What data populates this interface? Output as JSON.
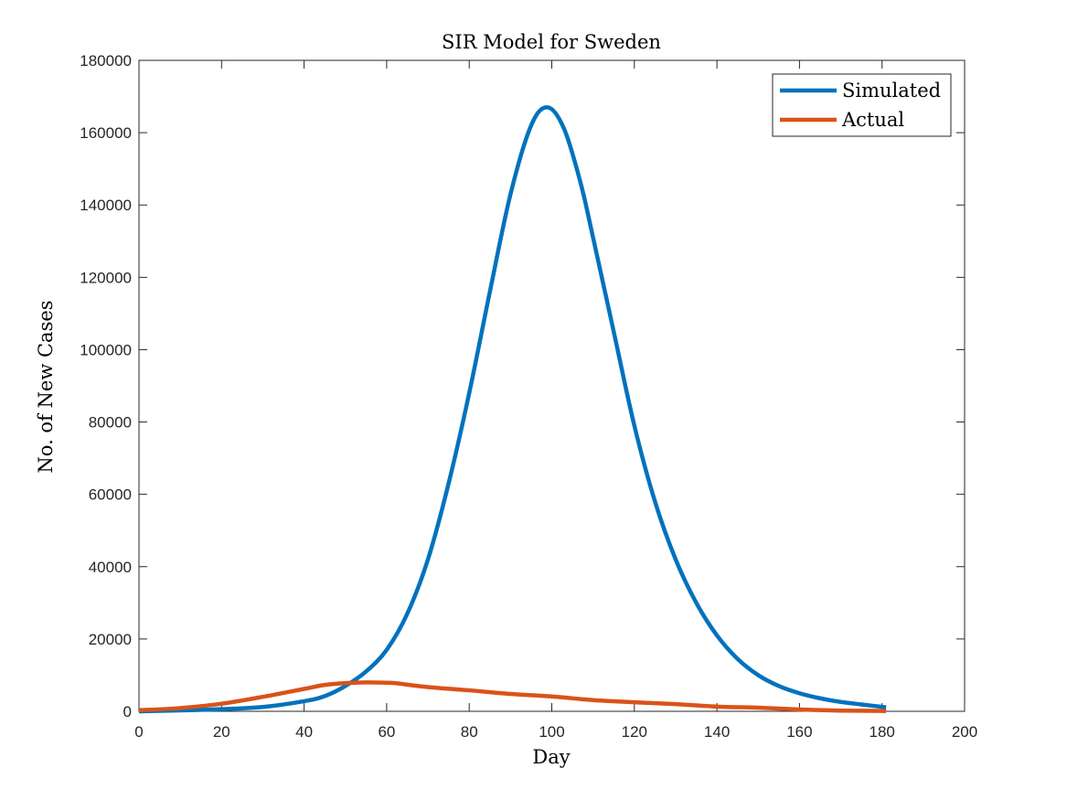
{
  "chart_data": {
    "type": "line",
    "title": "SIR Model for Sweden",
    "xlabel": "Day",
    "ylabel": "No. of New Cases",
    "xlim": [
      0,
      200
    ],
    "ylim": [
      0,
      180000
    ],
    "x_ticks": [
      0,
      20,
      40,
      60,
      80,
      100,
      120,
      140,
      160,
      180,
      200
    ],
    "y_ticks": [
      0,
      20000,
      40000,
      60000,
      80000,
      100000,
      120000,
      140000,
      160000,
      180000
    ],
    "x_tick_labels": [
      "0",
      "20",
      "40",
      "60",
      "80",
      "100",
      "120",
      "140",
      "160",
      "180",
      "200"
    ],
    "y_tick_labels": [
      "0",
      "20000",
      "40000",
      "60000",
      "80000",
      "100000",
      "120000",
      "140000",
      "160000",
      "180000"
    ],
    "grid": false,
    "legend_position": "top-right",
    "series": [
      {
        "name": "Simulated",
        "color": "#0072BD",
        "x": [
          0,
          10,
          20,
          30,
          40,
          45,
          50,
          55,
          60,
          65,
          70,
          75,
          80,
          85,
          90,
          95,
          99,
          103,
          107,
          110,
          115,
          120,
          125,
          130,
          135,
          140,
          145,
          150,
          155,
          160,
          165,
          170,
          175,
          181
        ],
        "y": [
          0,
          250,
          600,
          1200,
          2800,
          4200,
          7000,
          11000,
          17000,
          27000,
          42000,
          63000,
          88000,
          116000,
          143000,
          162000,
          167000,
          161000,
          146000,
          131000,
          105000,
          79000,
          58000,
          42000,
          30000,
          21000,
          14500,
          10000,
          7000,
          5000,
          3600,
          2600,
          1900,
          1100
        ]
      },
      {
        "name": "Actual",
        "color": "#D95319",
        "x": [
          0,
          10,
          20,
          30,
          40,
          45,
          50,
          55,
          60,
          62,
          70,
          80,
          90,
          100,
          110,
          120,
          130,
          140,
          150,
          160,
          170,
          181
        ],
        "y": [
          300,
          900,
          2100,
          4000,
          6200,
          7300,
          7800,
          8000,
          7900,
          7800,
          6700,
          5800,
          4800,
          4100,
          3100,
          2500,
          2000,
          1300,
          1000,
          500,
          200,
          100
        ]
      }
    ]
  }
}
